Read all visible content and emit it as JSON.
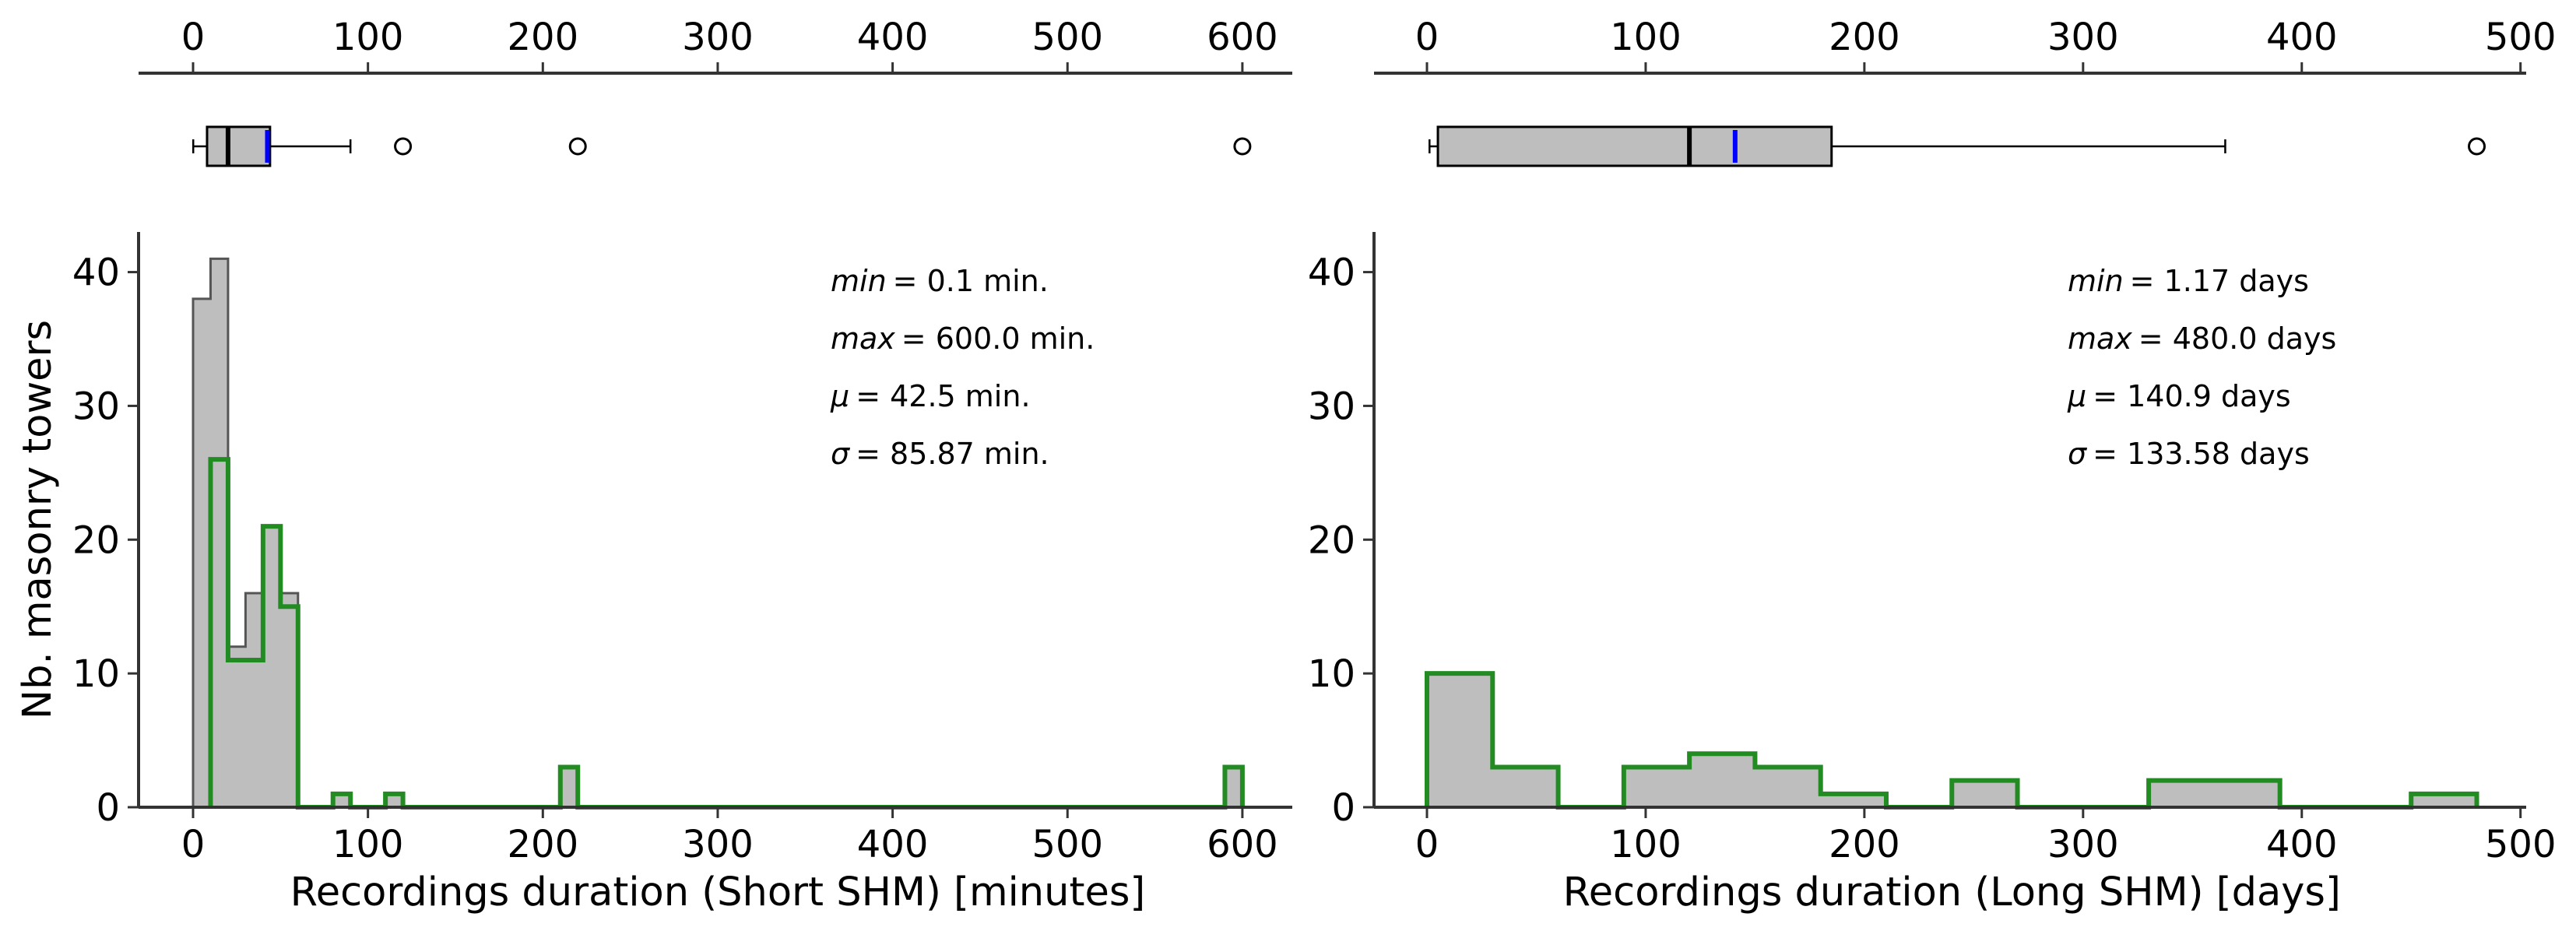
{
  "chart_data": [
    {
      "type": "histogram",
      "panel": "short",
      "xlabel": "Recordings duration (Short SHM) [minutes]",
      "ylabel": "Nb. masonry towers",
      "xlim": [
        -30,
        630
      ],
      "ylim": [
        0,
        43
      ],
      "xticks": [
        0,
        100,
        200,
        300,
        400,
        500,
        600
      ],
      "yticks": [
        0,
        10,
        20,
        30,
        40
      ],
      "colors": {
        "total_fill": "#bebebe",
        "total_edge": "#555555",
        "subset_edge": "#228b22",
        "mean_marker": "#0000ff",
        "median_marker": "#000000"
      },
      "series": [
        {
          "edges": [
            0,
            10,
            20,
            30,
            40,
            50,
            60,
            70,
            80,
            90,
            100,
            110,
            120,
            130,
            140,
            150,
            160,
            170,
            180,
            190,
            200,
            210,
            220,
            230,
            240,
            250,
            260,
            270,
            280,
            290,
            300,
            310,
            320,
            330,
            340,
            350,
            360,
            370,
            380,
            390,
            400,
            410,
            420,
            430,
            440,
            450,
            460,
            470,
            480,
            490,
            500,
            510,
            520,
            530,
            540,
            550,
            560,
            570,
            580,
            590,
            600
          ],
          "counts": [
            38,
            41,
            12,
            16,
            21,
            16,
            0,
            0,
            1,
            0,
            0,
            1,
            0,
            0,
            0,
            0,
            0,
            0,
            0,
            0,
            0,
            3,
            0,
            0,
            0,
            0,
            0,
            0,
            0,
            0,
            0,
            0,
            0,
            0,
            0,
            0,
            0,
            0,
            0,
            0,
            0,
            0,
            0,
            0,
            0,
            0,
            0,
            0,
            0,
            0,
            0,
            0,
            0,
            0,
            0,
            0,
            0,
            0,
            0,
            3
          ]
        },
        {
          "edges": [
            10,
            20,
            30,
            40,
            50,
            60,
            70,
            80,
            90,
            100,
            110,
            120,
            130,
            140,
            150,
            160,
            170,
            180,
            190,
            200,
            210,
            220,
            230,
            240,
            250,
            260,
            270,
            280,
            290,
            300,
            310,
            320,
            330,
            340,
            350,
            360,
            370,
            380,
            390,
            400,
            410,
            420,
            430,
            440,
            450,
            460,
            470,
            480,
            490,
            500,
            510,
            520,
            530,
            540,
            550,
            560,
            570,
            580,
            590,
            600
          ],
          "counts": [
            26,
            11,
            11,
            21,
            15,
            0,
            0,
            1,
            0,
            0,
            1,
            0,
            0,
            0,
            0,
            0,
            0,
            0,
            0,
            0,
            3,
            0,
            0,
            0,
            0,
            0,
            0,
            0,
            0,
            0,
            0,
            0,
            0,
            0,
            0,
            0,
            0,
            0,
            0,
            0,
            0,
            0,
            0,
            0,
            0,
            0,
            0,
            0,
            0,
            0,
            0,
            0,
            0,
            0,
            0,
            0,
            0,
            0,
            3
          ]
        }
      ],
      "boxplot": {
        "whisker_low": 0.1,
        "q1": 8,
        "median": 20,
        "mean": 42.5,
        "q3": 44,
        "whisker_high": 90,
        "outliers": [
          120,
          220,
          600
        ]
      },
      "stats": [
        {
          "sym": "min",
          "italic": true,
          "value": "= 0.1 min."
        },
        {
          "sym": "max",
          "italic": true,
          "value": "= 600.0 min."
        },
        {
          "sym": "μ",
          "italic": true,
          "value": "= 42.5 min."
        },
        {
          "sym": "σ",
          "italic": true,
          "value": "= 85.87 min."
        }
      ]
    },
    {
      "type": "histogram",
      "panel": "long",
      "xlabel": "Recordings duration (Long SHM) [days]",
      "ylabel": "",
      "xlim": [
        -25,
        505
      ],
      "ylim": [
        0,
        43
      ],
      "xticks": [
        0,
        100,
        200,
        300,
        400,
        500
      ],
      "yticks": [
        0,
        10,
        20,
        30,
        40
      ],
      "colors": {
        "total_fill": "#bebebe",
        "total_edge": "#555555",
        "subset_edge": "#228b22",
        "mean_marker": "#0000ff",
        "median_marker": "#000000"
      },
      "series": [
        {
          "edges": [
            0,
            30,
            60,
            90,
            120,
            150,
            180,
            210,
            240,
            270,
            300,
            330,
            360,
            390,
            420,
            450,
            480
          ],
          "counts": [
            10,
            3,
            0,
            3,
            4,
            3,
            1,
            0,
            2,
            0,
            0,
            2,
            2,
            0,
            0,
            1
          ]
        },
        {
          "edges": [
            0,
            30,
            60,
            90,
            120,
            150,
            180,
            210,
            240,
            270,
            300,
            330,
            360,
            390,
            420,
            450,
            480
          ],
          "counts": [
            10,
            3,
            0,
            3,
            4,
            3,
            1,
            0,
            2,
            0,
            0,
            2,
            2,
            0,
            0,
            1
          ]
        }
      ],
      "boxplot": {
        "whisker_low": 1.17,
        "q1": 5,
        "median": 120,
        "mean": 140.9,
        "q3": 185,
        "whisker_high": 365,
        "outliers": [
          480
        ]
      },
      "stats": [
        {
          "sym": "min",
          "italic": true,
          "value": "= 1.17 days"
        },
        {
          "sym": "max",
          "italic": true,
          "value": "= 480.0 days"
        },
        {
          "sym": "μ",
          "italic": true,
          "value": "= 140.9 days"
        },
        {
          "sym": "σ",
          "italic": true,
          "value": "= 133.58 days"
        }
      ]
    }
  ]
}
